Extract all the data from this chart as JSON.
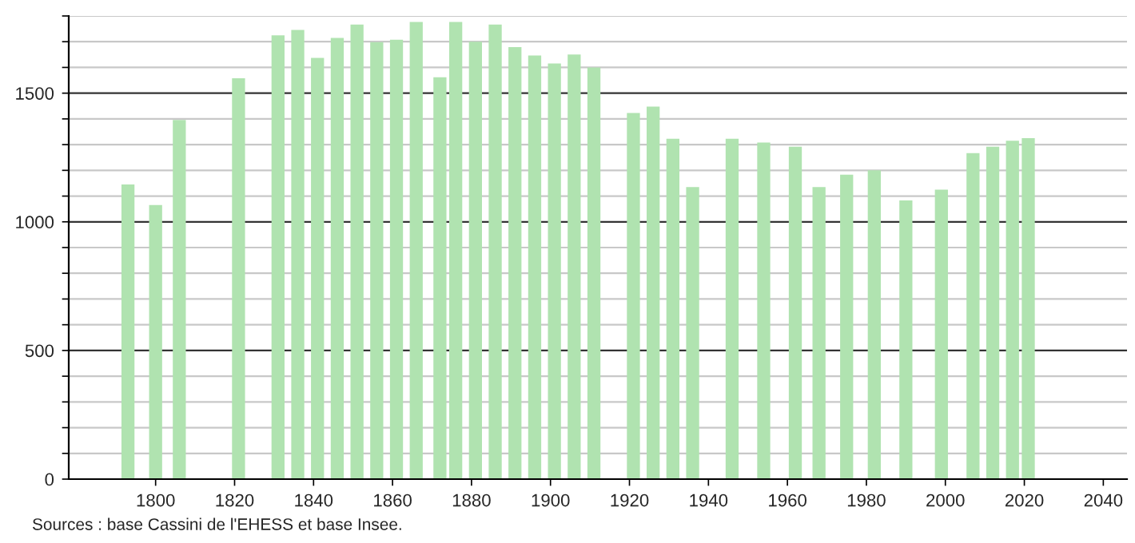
{
  "chart_data": {
    "type": "bar",
    "x": [
      1793,
      1800,
      1806,
      1821,
      1831,
      1836,
      1841,
      1846,
      1851,
      1856,
      1861,
      1866,
      1872,
      1876,
      1881,
      1886,
      1891,
      1896,
      1901,
      1906,
      1911,
      1921,
      1926,
      1931,
      1936,
      1946,
      1954,
      1962,
      1968,
      1975,
      1982,
      1990,
      1999,
      2007,
      2012,
      2017,
      2021
    ],
    "values": [
      1145,
      1065,
      1396,
      1558,
      1725,
      1746,
      1637,
      1715,
      1767,
      1698,
      1708,
      1777,
      1562,
      1777,
      1700,
      1767,
      1679,
      1646,
      1615,
      1650,
      1600,
      1423,
      1448,
      1323,
      1135,
      1323,
      1308,
      1292,
      1135,
      1183,
      1200,
      1083,
      1125,
      1267,
      1292,
      1315,
      1325
    ],
    "color": "#b0e3b0",
    "xlim": [
      1778,
      2046
    ],
    "ylim": [
      0,
      1800
    ],
    "xticks": [
      1800,
      1820,
      1840,
      1860,
      1880,
      1900,
      1920,
      1940,
      1960,
      1980,
      2000,
      2020,
      2040
    ],
    "yticks": [
      0,
      {
        "value": 100,
        "label": null
      },
      {
        "value": 200,
        "label": null
      },
      {
        "value": 300,
        "label": null
      },
      {
        "value": 400,
        "label": null
      },
      500,
      {
        "value": 600,
        "label": null
      },
      {
        "value": 700,
        "label": null
      },
      {
        "value": 800,
        "label": null
      },
      {
        "value": 900,
        "label": null
      },
      1000,
      {
        "value": 1100,
        "label": null
      },
      {
        "value": 1200,
        "label": null
      },
      {
        "value": 1300,
        "label": null
      },
      {
        "value": 1400,
        "label": null
      },
      1500,
      {
        "value": 1600,
        "label": null
      },
      {
        "value": 1700,
        "label": null
      },
      {
        "value": 1800,
        "label": null
      }
    ],
    "grid": "y",
    "annotations": [
      "Sources : base Cassini de l'EHESS et base Insee."
    ]
  }
}
